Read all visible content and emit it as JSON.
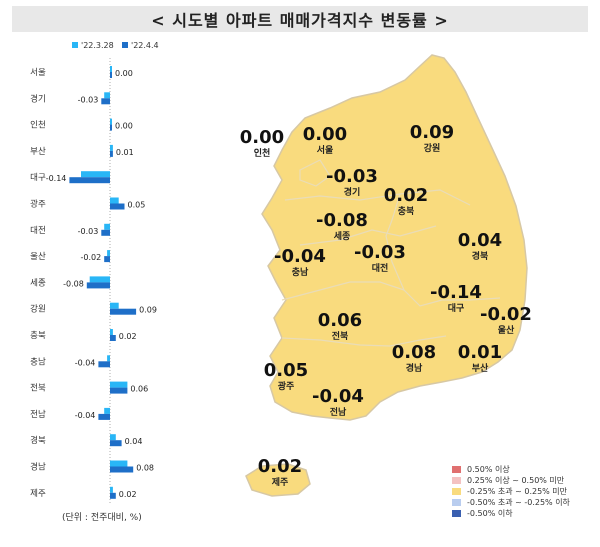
{
  "title": "< 시도별 아파트 매매가격지수 변동률 >",
  "unit_note": "(단위 : 전주대비, %)",
  "colors": {
    "prev": "#29b6f6",
    "curr": "#1e6fc8",
    "map_fill": "#f9db7e",
    "map_stroke": "#d7c8a4",
    "title_bg": "#e8e8e8"
  },
  "chart_data": {
    "type": "bar",
    "orientation": "horizontal",
    "categories": [
      "서울",
      "경기",
      "인천",
      "부산",
      "대구",
      "광주",
      "대전",
      "울산",
      "세종",
      "강원",
      "충북",
      "충남",
      "전북",
      "전남",
      "경북",
      "경남",
      "제주"
    ],
    "series": [
      {
        "name": "'22.3.28",
        "values": [
          0.0,
          -0.02,
          0.0,
          0.01,
          -0.1,
          0.03,
          -0.02,
          -0.01,
          -0.07,
          0.03,
          0.01,
          -0.01,
          0.06,
          -0.02,
          0.02,
          0.06,
          0.01
        ]
      },
      {
        "name": "'22.4.4",
        "values": [
          0.0,
          -0.03,
          0.0,
          0.01,
          -0.14,
          0.05,
          -0.03,
          -0.02,
          -0.08,
          0.09,
          0.02,
          -0.04,
          0.06,
          -0.04,
          0.04,
          0.08,
          0.02
        ]
      }
    ],
    "data_labels": [
      "0.00",
      "-0.03",
      "0.00",
      "0.01",
      "-0.14",
      "0.05",
      "-0.03",
      "-0.02",
      "-0.08",
      "0.09",
      "0.02",
      "-0.04",
      "0.06",
      "-0.04",
      "0.04",
      "0.08",
      "0.02"
    ],
    "legend_position": "top"
  },
  "map": {
    "regions": [
      {
        "name": "인천",
        "value": "0.00"
      },
      {
        "name": "서울",
        "value": "0.00"
      },
      {
        "name": "강원",
        "value": "0.09"
      },
      {
        "name": "경기",
        "value": "-0.03"
      },
      {
        "name": "충북",
        "value": "0.02"
      },
      {
        "name": "세종",
        "value": "-0.08"
      },
      {
        "name": "경북",
        "value": "0.04"
      },
      {
        "name": "충남",
        "value": "-0.04"
      },
      {
        "name": "대전",
        "value": "-0.03"
      },
      {
        "name": "대구",
        "value": "-0.14"
      },
      {
        "name": "울산",
        "value": "-0.02"
      },
      {
        "name": "전북",
        "value": "0.06"
      },
      {
        "name": "경남",
        "value": "0.08"
      },
      {
        "name": "부산",
        "value": "0.01"
      },
      {
        "name": "광주",
        "value": "0.05"
      },
      {
        "name": "전남",
        "value": "-0.04"
      },
      {
        "name": "제주",
        "value": "0.02"
      }
    ],
    "legend": [
      {
        "label": "0.50% 이상",
        "color": "#e07070"
      },
      {
        "label": "0.25% 이상 ~ 0.50% 미만",
        "color": "#f4c2c2"
      },
      {
        "label": "-0.25% 초과 ~ 0.25% 미만",
        "color": "#f9db7e"
      },
      {
        "label": "-0.50% 초과 ~ -0.25% 이하",
        "color": "#b9cdef"
      },
      {
        "label": "-0.50% 이하",
        "color": "#3a5fb0"
      }
    ]
  }
}
